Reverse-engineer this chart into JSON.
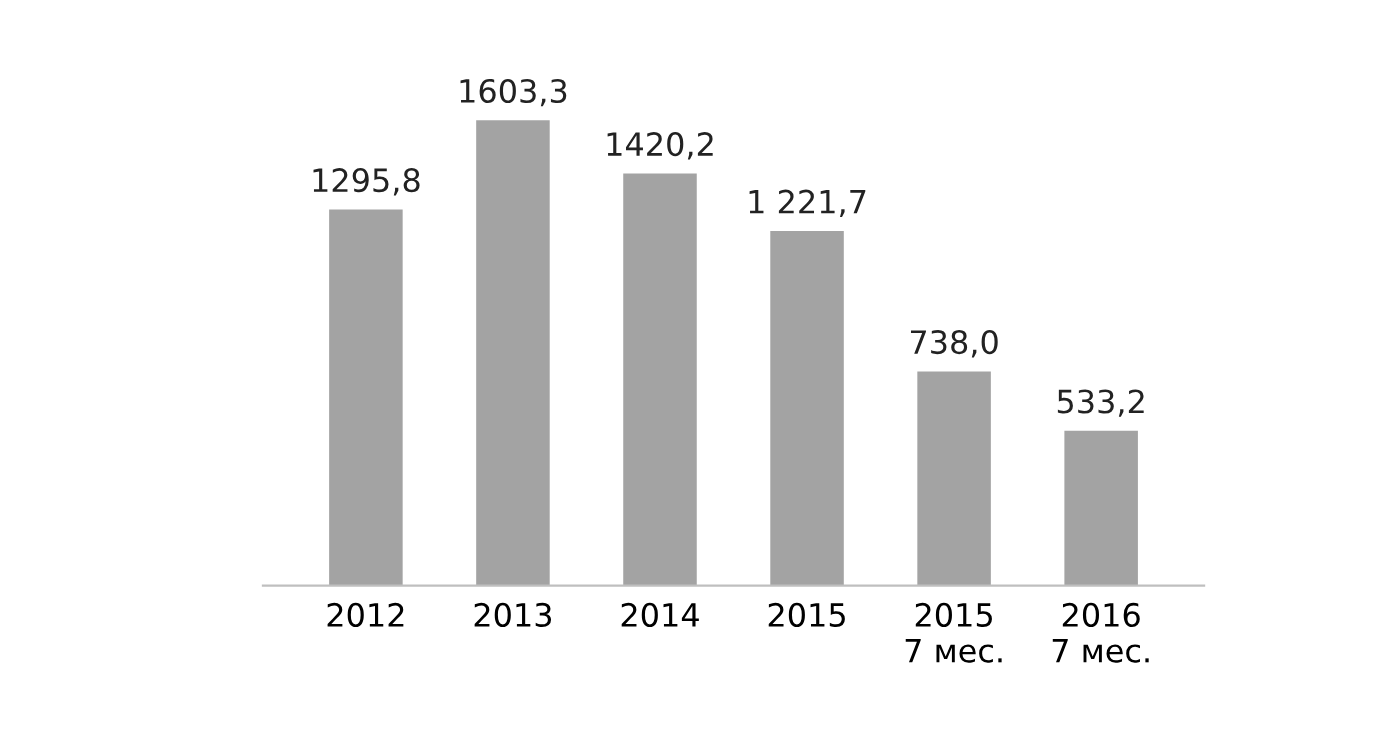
{
  "chart_data": {
    "type": "bar",
    "categories": [
      "2012",
      "2013",
      "2014",
      "2015",
      "2015\n7 мес.",
      "2016\n7 мес."
    ],
    "values": [
      1295.8,
      1603.3,
      1420.2,
      1221.7,
      738.0,
      533.2
    ],
    "value_labels": [
      "1295,8",
      "1603,3",
      "1420,2",
      "1 221,7",
      "738,0",
      "533,2"
    ],
    "color": "#a3a3a3",
    "grid": false,
    "legend": false
  }
}
